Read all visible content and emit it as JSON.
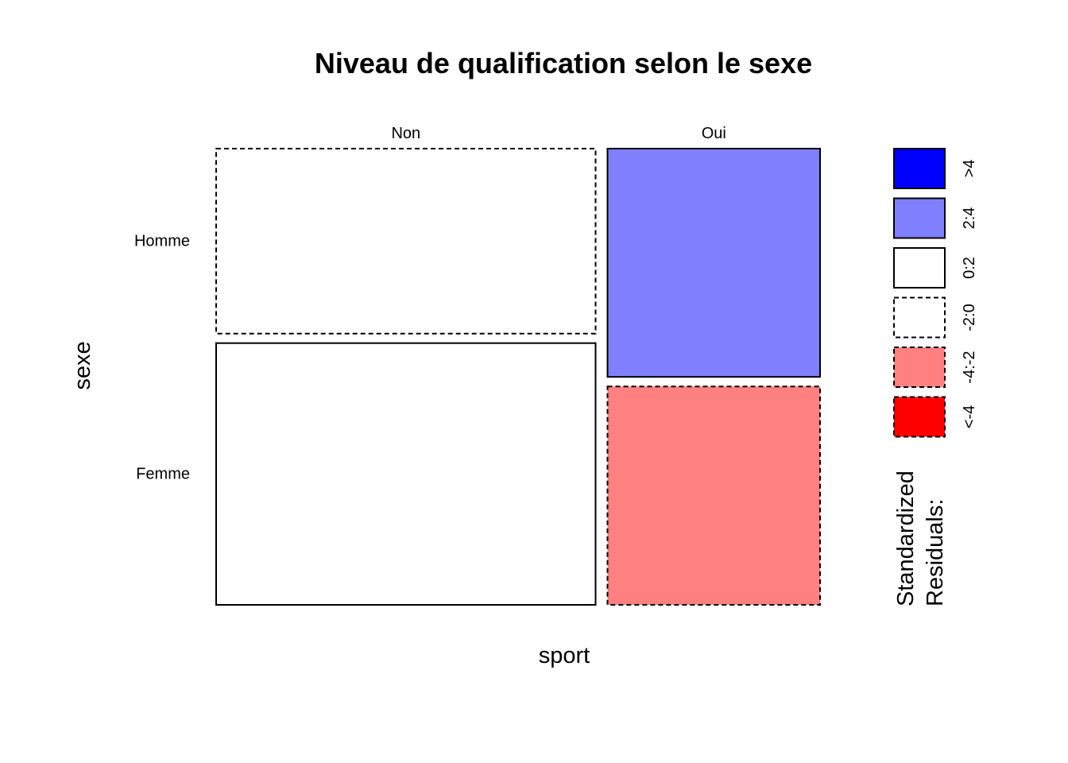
{
  "chart_data": {
    "type": "mosaic",
    "title": "Niveau de qualification selon le sexe",
    "xlabel": "sport",
    "ylabel": "sexe",
    "x_categories": [
      "Non",
      "Oui"
    ],
    "y_categories": [
      "Homme",
      "Femme"
    ],
    "column_proportions": [
      0.641,
      0.359
    ],
    "cells": [
      {
        "x": "Non",
        "y": "Homme",
        "row_proportion": 0.414,
        "residual_band": "-2:0"
      },
      {
        "x": "Non",
        "y": "Femme",
        "row_proportion": 0.586,
        "residual_band": "0:2"
      },
      {
        "x": "Oui",
        "y": "Homme",
        "row_proportion": 0.511,
        "residual_band": "2:4"
      },
      {
        "x": "Oui",
        "y": "Femme",
        "row_proportion": 0.489,
        "residual_band": "-4:-2"
      }
    ],
    "legend": {
      "title_lines": [
        "Standardized",
        "Residuals:"
      ],
      "bands": [
        {
          "label": ">4",
          "color": "#0000ff",
          "dashed": false
        },
        {
          "label": "2:4",
          "color": "#8080ff",
          "dashed": false
        },
        {
          "label": "0:2",
          "color": "#ffffff",
          "dashed": false
        },
        {
          "label": "-2:0",
          "color": "#ffffff",
          "dashed": true
        },
        {
          "label": "-4:-2",
          "color": "#ff8080",
          "dashed": true
        },
        {
          "label": "<-4",
          "color": "#ff0000",
          "dashed": true
        }
      ]
    }
  }
}
